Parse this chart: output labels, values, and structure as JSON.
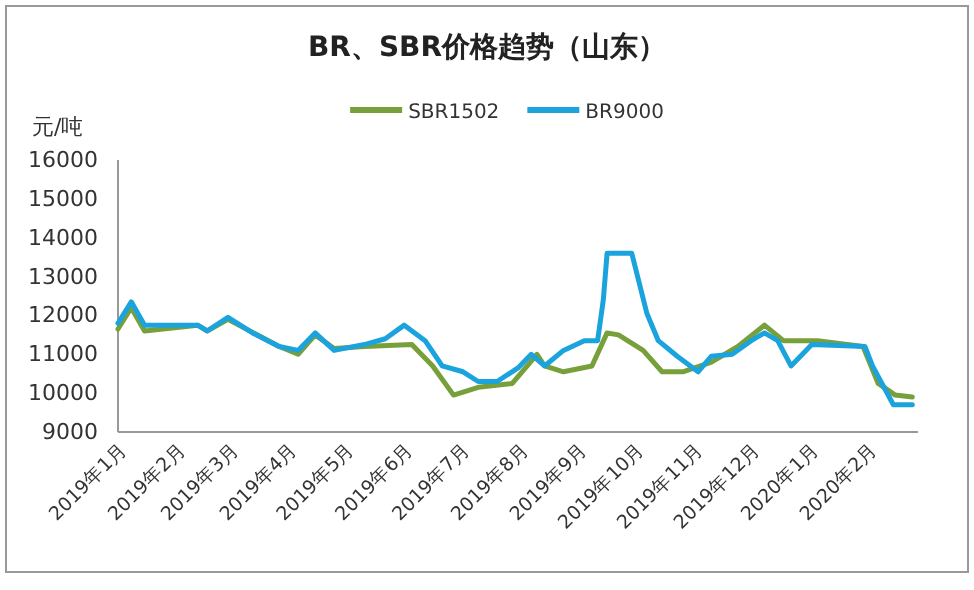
{
  "chart_data": {
    "type": "line",
    "title": "BR、SBR价格趋势（山东）",
    "ylabel": "元/吨",
    "legend": "top",
    "grid": false,
    "xlim": [
      "2019-01-01",
      "2020-02-27"
    ],
    "xticks": [
      {
        "value": "2019-01-01",
        "label": "2019年1月"
      },
      {
        "value": "2019-02-01",
        "label": "2019年2月"
      },
      {
        "value": "2019-03-01",
        "label": "2019年3月"
      },
      {
        "value": "2019-04-01",
        "label": "2019年4月"
      },
      {
        "value": "2019-05-01",
        "label": "2019年5月"
      },
      {
        "value": "2019-06-01",
        "label": "2019年6月"
      },
      {
        "value": "2019-07-01",
        "label": "2019年7月"
      },
      {
        "value": "2019-08-01",
        "label": "2019年8月"
      },
      {
        "value": "2019-09-01",
        "label": "2019年9月"
      },
      {
        "value": "2019-10-01",
        "label": "2019年10月"
      },
      {
        "value": "2019-11-01",
        "label": "2019年11月"
      },
      {
        "value": "2019-12-01",
        "label": "2019年12月"
      },
      {
        "value": "2020-01-01",
        "label": "2020年1月"
      },
      {
        "value": "2020-02-01",
        "label": "2020年2月"
      }
    ],
    "ylim": [
      9000,
      16000
    ],
    "yticks": [
      9000,
      10000,
      11000,
      12000,
      13000,
      14000,
      15000,
      16000
    ],
    "series": [
      {
        "name": "SBR1502",
        "color": "#77a03a",
        "x": [
          "2019-01-01",
          "2019-01-08",
          "2019-01-15",
          "2019-02-12",
          "2019-02-17",
          "2019-02-28",
          "2019-03-27",
          "2019-04-06",
          "2019-04-15",
          "2019-04-25",
          "2019-05-11",
          "2019-06-05",
          "2019-06-16",
          "2019-06-27",
          "2019-07-10",
          "2019-07-28",
          "2019-08-10",
          "2019-08-14",
          "2019-08-24",
          "2019-09-08",
          "2019-09-16",
          "2019-09-22",
          "2019-10-05",
          "2019-10-15",
          "2019-10-26",
          "2019-11-10",
          "2019-11-24",
          "2019-12-08",
          "2019-12-18",
          "2020-01-05",
          "2020-01-29",
          "2020-02-06",
          "2020-02-15",
          "2020-02-24"
        ],
        "values": [
          11650,
          12200,
          11600,
          11750,
          11600,
          11900,
          11200,
          11000,
          11500,
          11150,
          11200,
          11250,
          10700,
          9950,
          10150,
          10250,
          11000,
          10700,
          10550,
          10700,
          11550,
          11500,
          11100,
          10550,
          10550,
          10800,
          11200,
          11750,
          11350,
          11350,
          11200,
          10250,
          9950,
          9900
        ]
      },
      {
        "name": "BR9000",
        "color": "#1ba3dd",
        "x": [
          "2019-01-01",
          "2019-01-08",
          "2019-01-15",
          "2019-02-12",
          "2019-02-17",
          "2019-02-28",
          "2019-03-13",
          "2019-03-27",
          "2019-04-06",
          "2019-04-15",
          "2019-04-25",
          "2019-05-11",
          "2019-05-22",
          "2019-06-01",
          "2019-06-12",
          "2019-06-21",
          "2019-07-02",
          "2019-07-10",
          "2019-07-20",
          "2019-07-31",
          "2019-08-07",
          "2019-08-14",
          "2019-08-24",
          "2019-09-04",
          "2019-09-11",
          "2019-09-14",
          "2019-09-16",
          "2019-09-29",
          "2019-10-07",
          "2019-10-13",
          "2019-10-23",
          "2019-11-03",
          "2019-11-10",
          "2019-11-21",
          "2019-12-01",
          "2019-12-08",
          "2019-12-15",
          "2019-12-22",
          "2020-01-02",
          "2020-01-30",
          "2020-02-03",
          "2020-02-14",
          "2020-02-24"
        ],
        "values": [
          11800,
          12350,
          11750,
          11750,
          11600,
          11950,
          11550,
          11200,
          11100,
          11550,
          11100,
          11250,
          11400,
          11750,
          11350,
          10700,
          10550,
          10300,
          10300,
          10650,
          11000,
          10700,
          11100,
          11350,
          11350,
          12400,
          13600,
          13600,
          12050,
          11350,
          10950,
          10550,
          10950,
          11000,
          11350,
          11550,
          11350,
          10700,
          11250,
          11200,
          10700,
          9700,
          9700
        ]
      }
    ]
  }
}
